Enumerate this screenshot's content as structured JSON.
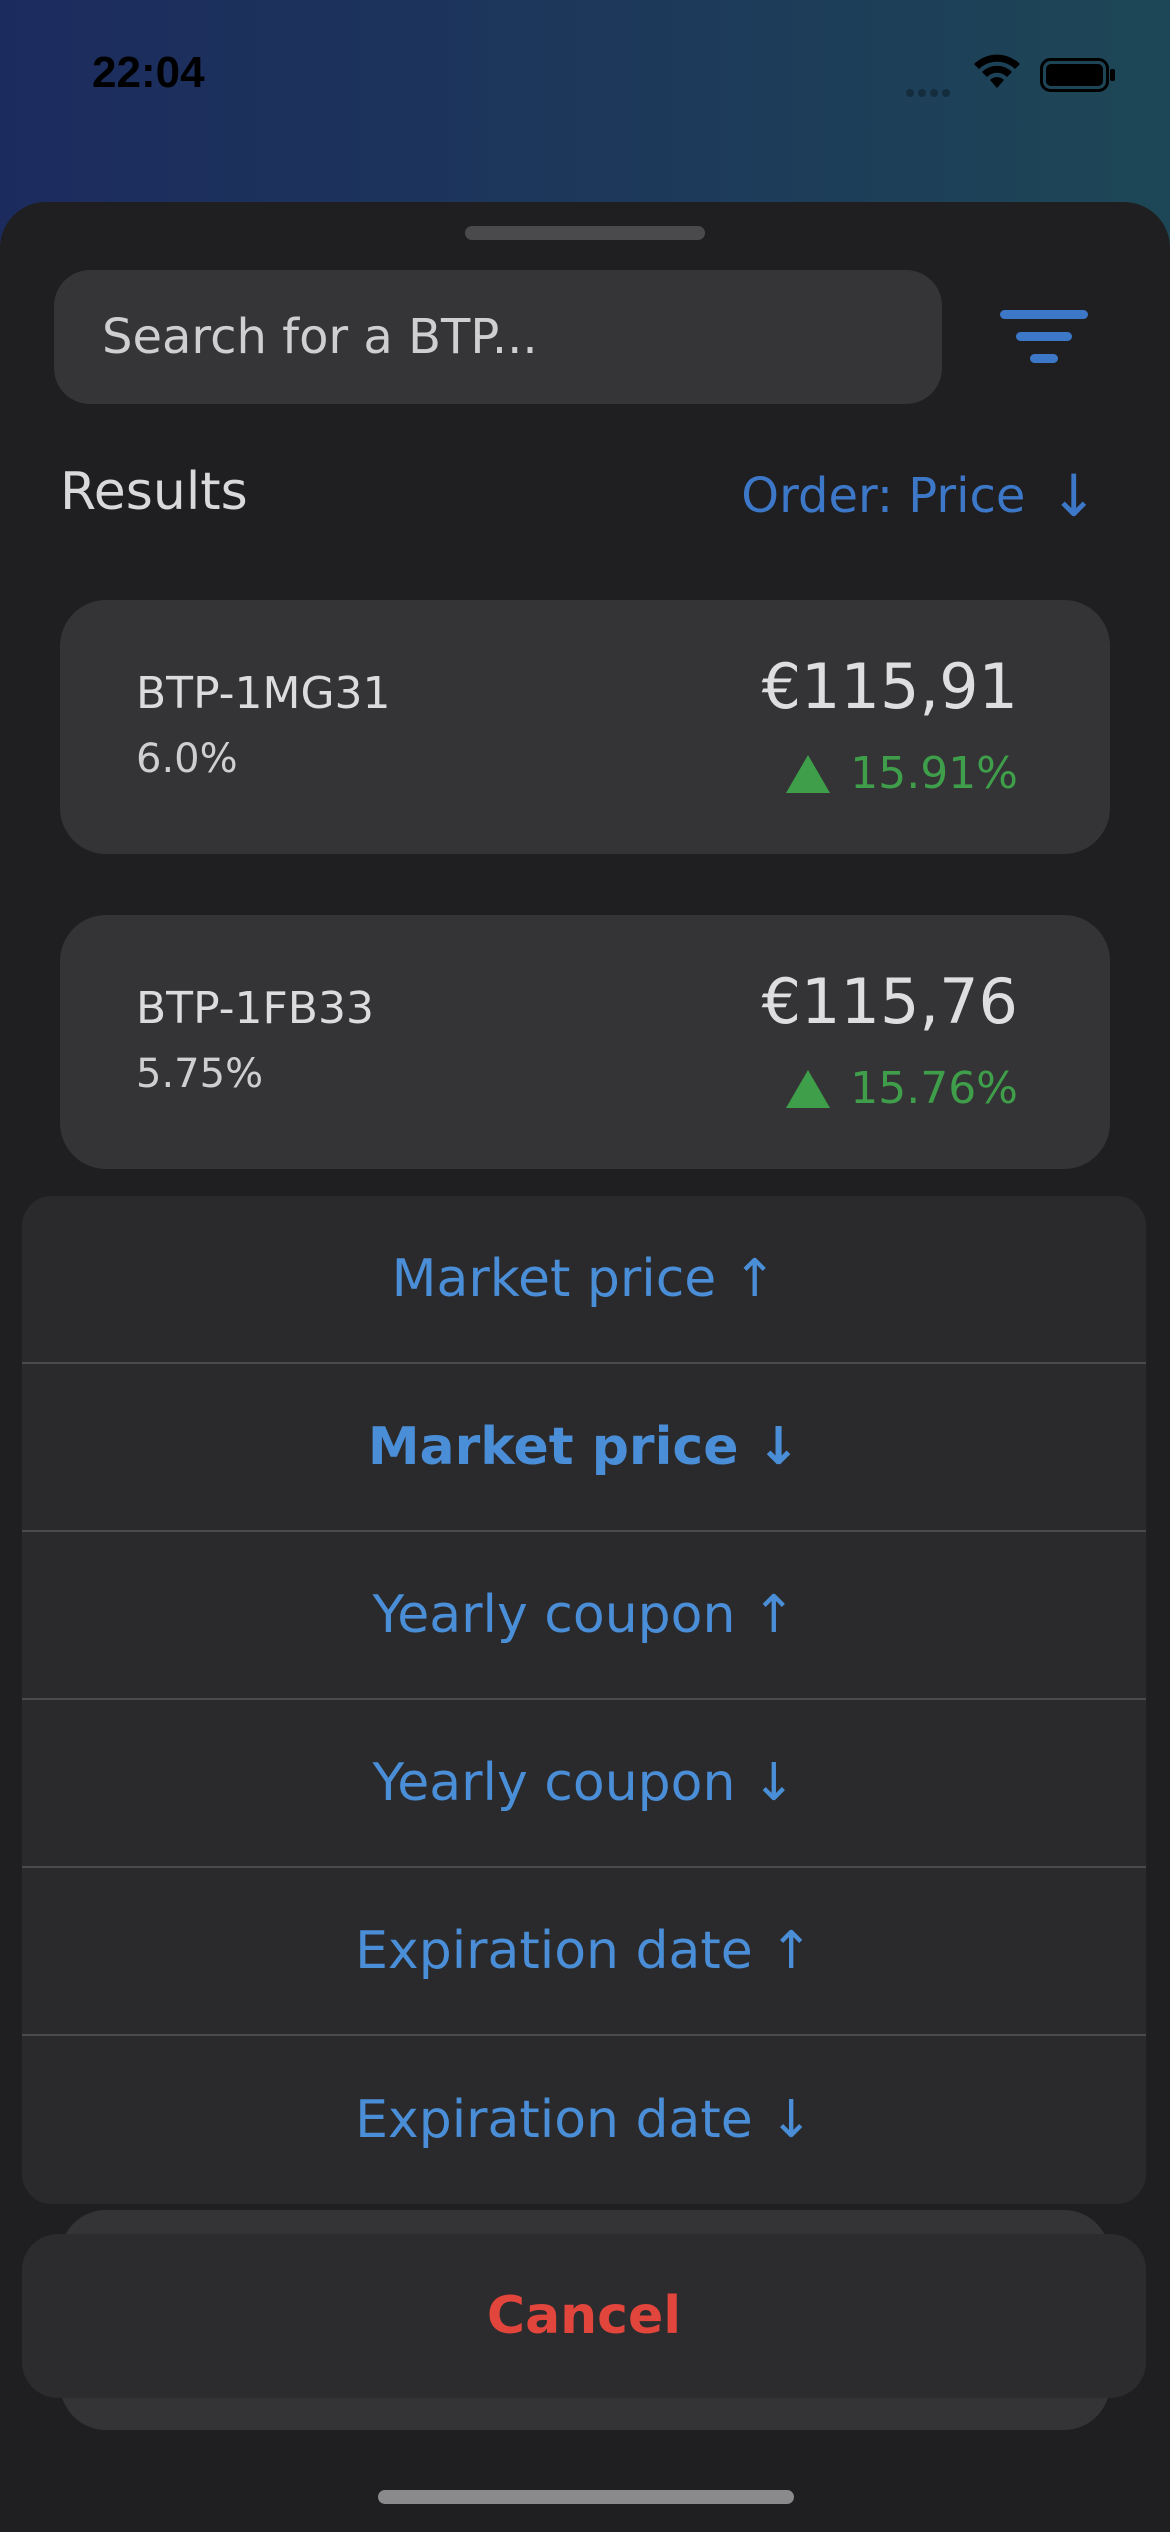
{
  "status_bar": {
    "time": "22:04"
  },
  "search": {
    "placeholder": "Search for a BTP..."
  },
  "results": {
    "title": "Results",
    "order_label": "Order: Price",
    "order_arrow": "↓"
  },
  "cards": [
    {
      "name": "BTP-1MG31",
      "coupon": "6.0%",
      "price": "€115,91",
      "change": "15.91%"
    },
    {
      "name": "BTP-1FB33",
      "coupon": "5.75%",
      "price": "€115,76",
      "change": "15.76%"
    }
  ],
  "order_menu": {
    "options": [
      "Market price ↑",
      "Market price ↓",
      "Yearly coupon ↑",
      "Yearly coupon ↓",
      "Expiration date ↑",
      "Expiration date ↓"
    ],
    "selected_index": 1,
    "cancel_label": "Cancel"
  },
  "colors": {
    "accent": "#4a8ed8",
    "positive": "#3f9e4a",
    "destructive": "#e2453c"
  },
  "icons": {
    "filter": "filter-icon",
    "wifi": "wifi-icon",
    "battery": "battery-icon"
  }
}
